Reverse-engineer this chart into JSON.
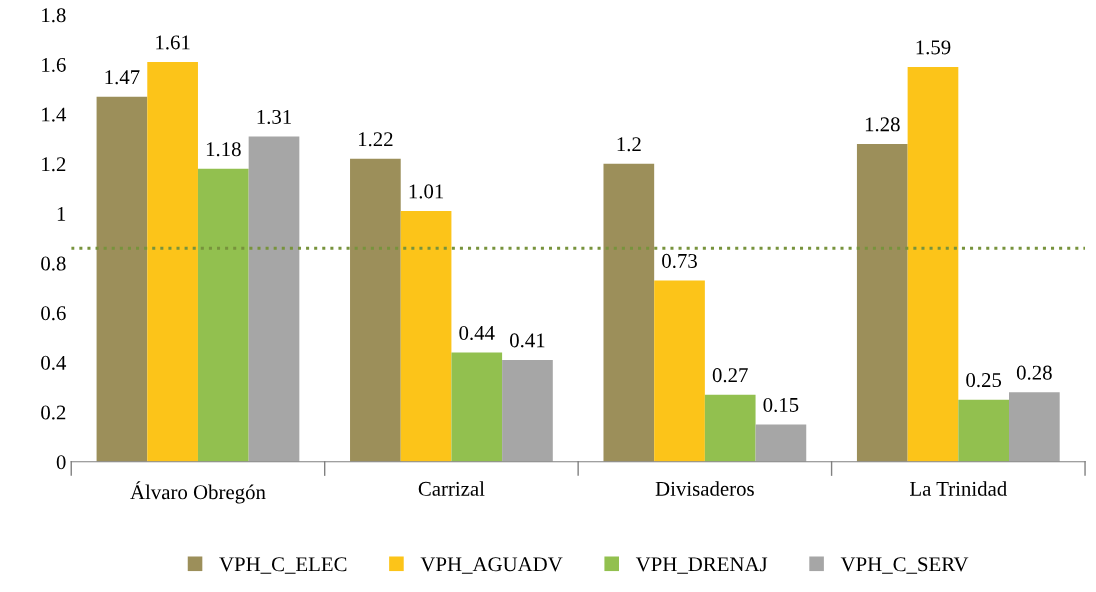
{
  "chart_data": {
    "type": "bar",
    "categories": [
      "Álvaro Obregón",
      "Carrizal",
      "Divisaderos",
      "La Trinidad"
    ],
    "series": [
      {
        "name": "VPH_C_ELEC",
        "color": "#9c8f5a",
        "values": [
          1.47,
          1.22,
          1.2,
          1.28
        ]
      },
      {
        "name": "VPH_AGUADV",
        "color": "#fcc419",
        "values": [
          1.61,
          1.01,
          0.73,
          1.59
        ]
      },
      {
        "name": "VPH_DRENAJ",
        "color": "#92c04f",
        "values": [
          1.18,
          0.44,
          0.27,
          0.25
        ]
      },
      {
        "name": "VPH_C_SERV",
        "color": "#a6a6a6",
        "values": [
          1.31,
          0.41,
          0.15,
          0.28
        ]
      }
    ],
    "ylim": [
      0,
      1.8
    ],
    "yticks": [
      0,
      0.2,
      0.4,
      0.6,
      0.8,
      1,
      1.2,
      1.4,
      1.6,
      1.8
    ],
    "ref_lines": [
      {
        "axis": "y",
        "value": 0.86,
        "color": "#77933c",
        "line_style": "dotted"
      }
    ],
    "data_labels": true,
    "grid": false,
    "legend": "bottom"
  }
}
